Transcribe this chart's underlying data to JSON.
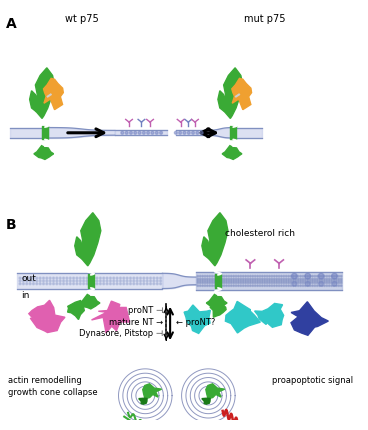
{
  "bg_color": "#ffffff",
  "panel_A_label": "A",
  "panel_B_label": "B",
  "wt_label": "wt p75",
  "mut_label": "mut p75",
  "out_label": "out",
  "in_label": "in",
  "cholesterol_label": "cholesterol rich",
  "proNT_label": "proNT ⊣",
  "matureNT_label": "mature NT →",
  "dynasore_label": "Dynasore, Pitstop ⊣",
  "proNT2_label": "← proNT?",
  "actin_label": "actin remodelling\ngrowth cone collapse",
  "proapoptotic_label": "proapoptotic signal",
  "green": "#3aaa35",
  "dark_green": "#1a7a18",
  "orange": "#f0a030",
  "magenta": "#e060b0",
  "cyan": "#30c8c8",
  "blue_dark": "#3040a0",
  "membrane_fill": "#c0c8e8",
  "membrane_line": "#8090c0",
  "raft_fill": "#b0bbdd",
  "red": "#cc2020",
  "pink_y": "#c060b0",
  "blue_y": "#7080c0",
  "arrow_color": "#111111"
}
